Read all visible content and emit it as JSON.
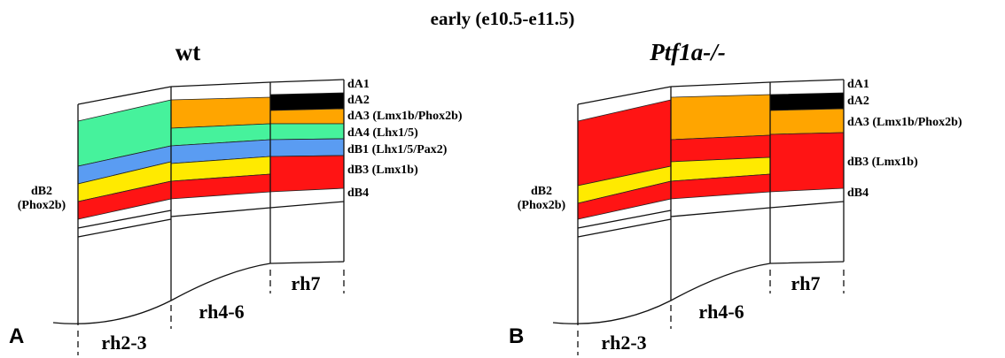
{
  "title": "early (e10.5-e11.5)",
  "panels": [
    {
      "letter": "A",
      "title": "wt",
      "right_labels": [
        "dA1",
        "dA2",
        "dA3 (Lmx1b/Phox2b)",
        "dA4 (Lhx1/5)",
        "dB1 (Lhx1/5/Pax2)",
        "dB3 (Lmx1b)",
        "dB4"
      ],
      "left_label": [
        "dB2",
        "(Phox2b)"
      ],
      "regions": [
        "rh2-3",
        "rh4-6",
        "rh7"
      ]
    },
    {
      "letter": "B",
      "title": "Ptf1a-/-",
      "right_labels": [
        "dA1",
        "dA2",
        "dA3 (Lmx1b/Phox2b)",
        "dB3 (Lmx1b)",
        "dB4"
      ],
      "left_label": [
        "dB2",
        "(Phox2b)"
      ],
      "regions": [
        "rh2-3",
        "rh4-6",
        "rh7"
      ]
    }
  ]
}
